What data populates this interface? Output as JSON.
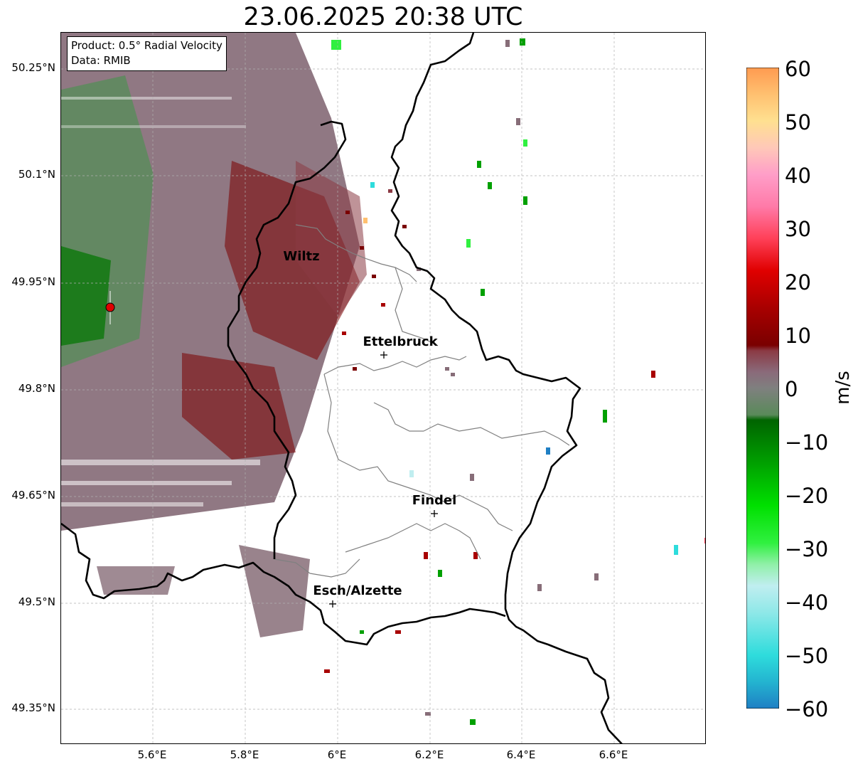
{
  "title": "23.06.2025 20:38 UTC",
  "info_box": {
    "product": "Product: 0.5° Radial Velocity",
    "source": "Data: RMIB"
  },
  "axes": {
    "lat_labels": [
      "50.25°N",
      "50.1°N",
      "49.95°N",
      "49.8°N",
      "49.65°N",
      "49.5°N",
      "49.35°N"
    ],
    "lon_labels": [
      "5.6°E",
      "5.8°E",
      "6°E",
      "6.2°E",
      "6.4°E",
      "6.6°E"
    ],
    "lon_range": [
      5.4,
      6.8
    ],
    "lat_range": [
      49.3,
      50.3
    ],
    "gridlines": "dashed"
  },
  "cities": [
    {
      "name": "Wiltz",
      "lon": 5.93,
      "lat": 49.966
    },
    {
      "name": "Ettelbruck",
      "lon": 6.1,
      "lat": 49.85
    },
    {
      "name": "Findel",
      "lon": 6.21,
      "lat": 49.626
    },
    {
      "name": "Esch/Alzette",
      "lon": 5.99,
      "lat": 49.499
    }
  ],
  "radar_site": {
    "lon": 5.505,
    "lat": 49.915,
    "color": "#e00000"
  },
  "colorbar": {
    "unit": "m/s",
    "vmin": -60,
    "vmax": 60,
    "tick_labels": [
      "60",
      "50",
      "40",
      "30",
      "20",
      "10",
      "0",
      "−10",
      "−20",
      "−30",
      "−40",
      "−50",
      "−60"
    ],
    "stops": [
      {
        "value": -60,
        "color": "#1f7fc4"
      },
      {
        "value": -55,
        "color": "#23b4d0"
      },
      {
        "value": -50,
        "color": "#2edcdc"
      },
      {
        "value": -42,
        "color": "#8fe8e8"
      },
      {
        "value": -37,
        "color": "#c0eef0"
      },
      {
        "value": -33,
        "color": "#90f0a8"
      },
      {
        "value": -29,
        "color": "#30f040"
      },
      {
        "value": -22,
        "color": "#00e000"
      },
      {
        "value": -14,
        "color": "#00a000"
      },
      {
        "value": -6,
        "color": "#006400"
      },
      {
        "value": -5,
        "color": "#5a8a5a"
      },
      {
        "value": 0,
        "color": "#7f807f"
      },
      {
        "value": 3,
        "color": "#8a6a7a"
      },
      {
        "value": 7,
        "color": "#8b3a44"
      },
      {
        "value": 8,
        "color": "#7a0000"
      },
      {
        "value": 15,
        "color": "#a80000"
      },
      {
        "value": 22,
        "color": "#e00000"
      },
      {
        "value": 28,
        "color": "#ff4058"
      },
      {
        "value": 34,
        "color": "#ff7aa8"
      },
      {
        "value": 40,
        "color": "#ff9ec8"
      },
      {
        "value": 45,
        "color": "#ffc8b8"
      },
      {
        "value": 50,
        "color": "#ffe090"
      },
      {
        "value": 55,
        "color": "#ffc070"
      },
      {
        "value": 60,
        "color": "#ff9a50"
      }
    ]
  }
}
